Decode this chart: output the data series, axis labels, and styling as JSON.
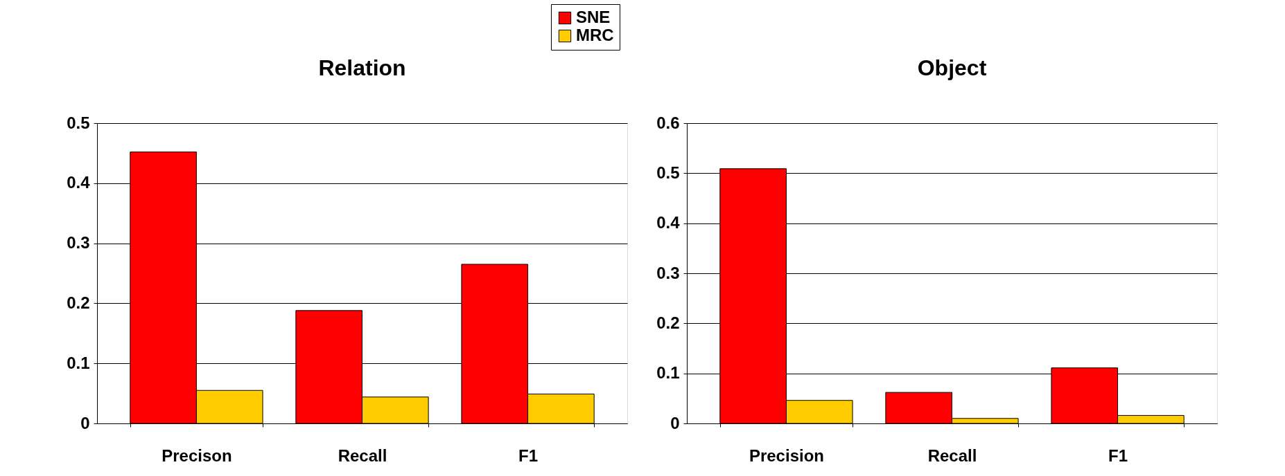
{
  "chart_data": [
    {
      "type": "bar",
      "title": "Relation",
      "categories": [
        "Precison",
        "Recall",
        "F1"
      ],
      "series": [
        {
          "name": "SNE",
          "color": "#ff0000",
          "values": [
            0.452,
            0.188,
            0.265
          ]
        },
        {
          "name": "MRC",
          "color": "#ffcc00",
          "values": [
            0.055,
            0.044,
            0.049
          ]
        }
      ],
      "ylim": [
        0,
        0.5
      ],
      "yticks": [
        0,
        0.1,
        0.2,
        0.3,
        0.4,
        0.5
      ],
      "grid": "y",
      "legend": "top right"
    },
    {
      "type": "bar",
      "title": "Object",
      "categories": [
        "Precision",
        "Recall",
        "F1"
      ],
      "series": [
        {
          "name": "SNE",
          "color": "#ff0000",
          "values": [
            0.509,
            0.062,
            0.111
          ]
        },
        {
          "name": "MRC",
          "color": "#ffcc00",
          "values": [
            0.046,
            0.01,
            0.016
          ]
        }
      ],
      "ylim": [
        0,
        0.6
      ],
      "yticks": [
        0,
        0.1,
        0.2,
        0.3,
        0.4,
        0.5,
        0.6
      ],
      "grid": "y",
      "legend": false
    }
  ]
}
